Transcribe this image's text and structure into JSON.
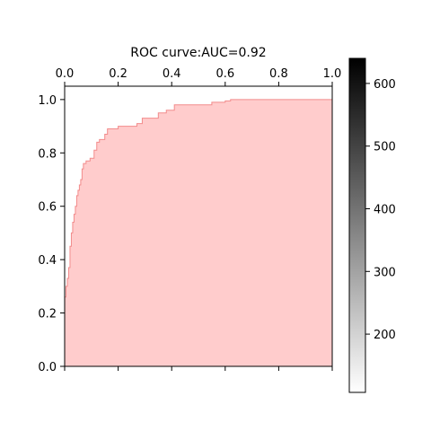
{
  "chart_data": {
    "type": "area",
    "title": "ROC curve:AUC=0.92",
    "xlabel": "",
    "ylabel": "",
    "xlim": [
      0,
      1
    ],
    "ylim": [
      0,
      1.05
    ],
    "x_axis_position": "top",
    "x_ticks": [
      0.0,
      0.2,
      0.4,
      0.6,
      0.8,
      1.0
    ],
    "x_tick_labels": [
      "0.0",
      "0.2",
      "0.4",
      "0.6",
      "0.8",
      "1.0"
    ],
    "y_ticks": [
      0.0,
      0.2,
      0.4,
      0.6,
      0.8,
      1.0
    ],
    "y_tick_labels": [
      "0.0",
      "0.2",
      "0.4",
      "0.6",
      "0.8",
      "1.0"
    ],
    "grid": false,
    "legend": "none",
    "fill_color": "#ffcccc",
    "line_color": "#f28b8b",
    "series": [
      {
        "x": [
          0.0,
          0.0,
          0.005,
          0.005,
          0.01,
          0.01,
          0.015,
          0.015,
          0.02,
          0.02,
          0.025,
          0.025,
          0.03,
          0.03,
          0.035,
          0.035,
          0.04,
          0.04,
          0.045,
          0.045,
          0.05,
          0.05,
          0.055,
          0.055,
          0.06,
          0.06,
          0.065,
          0.065,
          0.07,
          0.07,
          0.08,
          0.08,
          0.095,
          0.095,
          0.11,
          0.11,
          0.12,
          0.12,
          0.13,
          0.13,
          0.15,
          0.15,
          0.16,
          0.16,
          0.2,
          0.2,
          0.27,
          0.27,
          0.29,
          0.29,
          0.35,
          0.35,
          0.38,
          0.38,
          0.41,
          0.41,
          0.52,
          0.52,
          0.55,
          0.55,
          0.6,
          0.6,
          0.62,
          0.62,
          0.65,
          0.65,
          1.0
        ],
        "y": [
          0.0,
          0.26,
          0.26,
          0.3,
          0.3,
          0.33,
          0.33,
          0.37,
          0.37,
          0.45,
          0.45,
          0.5,
          0.5,
          0.54,
          0.54,
          0.57,
          0.57,
          0.6,
          0.6,
          0.64,
          0.64,
          0.66,
          0.66,
          0.68,
          0.68,
          0.7,
          0.7,
          0.74,
          0.74,
          0.76,
          0.76,
          0.77,
          0.77,
          0.78,
          0.78,
          0.81,
          0.81,
          0.84,
          0.84,
          0.85,
          0.85,
          0.87,
          0.87,
          0.89,
          0.89,
          0.9,
          0.9,
          0.91,
          0.91,
          0.93,
          0.93,
          0.95,
          0.95,
          0.96,
          0.96,
          0.98,
          0.98,
          0.98,
          0.98,
          0.99,
          0.99,
          0.995,
          0.995,
          1.0,
          1.0,
          1.0,
          1.0
        ]
      }
    ],
    "colorbar": {
      "ticks": [
        200,
        300,
        400,
        500,
        600
      ],
      "tick_labels": [
        "200",
        "300",
        "400",
        "500",
        "600"
      ],
      "range": [
        107,
        640
      ],
      "colormap": "greys",
      "color_low": "#ffffff",
      "color_high": "#000000"
    }
  }
}
